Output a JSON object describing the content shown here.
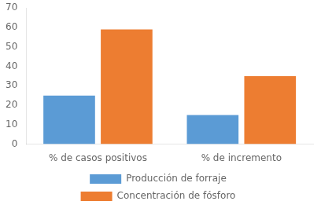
{
  "chart_data": {
    "type": "bar",
    "categories": [
      "% de casos positivos",
      "% de incremento"
    ],
    "series": [
      {
        "name": "Producción de forraje",
        "color": "#5B9BD5",
        "values": [
          25,
          15
        ]
      },
      {
        "name": "Concentración de fósforo",
        "color": "#ED7D31",
        "values": [
          59,
          35
        ]
      }
    ],
    "ylim": [
      0,
      70
    ],
    "yticks": [
      0,
      10,
      20,
      30,
      40,
      50,
      60,
      70
    ],
    "grid": false,
    "legend": "bottom"
  }
}
